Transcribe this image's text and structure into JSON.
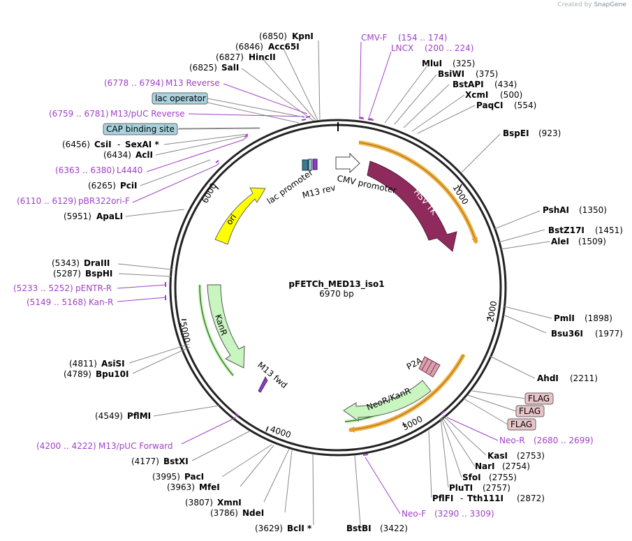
{
  "credit": {
    "prefix": "Created by",
    "brand": "SnapGene"
  },
  "plasmid": {
    "name": "pFETCh_MED13_iso1",
    "length": "6970 bp",
    "total_bp": 6970
  },
  "ticks": [
    {
      "label": "1000",
      "bp": 1000
    },
    {
      "label": "2000",
      "bp": 2000
    },
    {
      "label": "3000",
      "bp": 3000
    },
    {
      "label": "4000",
      "bp": 4000
    },
    {
      "label": "5000",
      "bp": 5000
    },
    {
      "label": "6000",
      "bp": 6000
    }
  ],
  "enzymes": {
    "kpni": {
      "name": "KpnI",
      "pos": "(6850)"
    },
    "acc65i": {
      "name": "Acc65I",
      "pos": "(6846)"
    },
    "hincii": {
      "name": "HincII",
      "pos": "(6827)"
    },
    "sali": {
      "name": "SalI",
      "pos": "(6825)"
    },
    "mlui": {
      "name": "MluI",
      "pos": "(325)"
    },
    "bsiwi": {
      "name": "BsiWI",
      "pos": "(375)"
    },
    "bstapi": {
      "name": "BstAPI",
      "pos": "(434)"
    },
    "xcmi": {
      "name": "XcmI",
      "pos": "(500)"
    },
    "paqci": {
      "name": "PaqCI",
      "pos": "(554)"
    },
    "bspei": {
      "name": "BspEI",
      "pos": "(923)"
    },
    "pshai": {
      "name": "PshAI",
      "pos": "(1350)"
    },
    "bstz17i": {
      "name": "BstZ17I",
      "pos": "(1451)"
    },
    "alei": {
      "name": "AleI",
      "pos": "(1509)"
    },
    "pmli": {
      "name": "PmlI",
      "pos": "(1898)"
    },
    "bsu36i": {
      "name": "Bsu36I",
      "pos": "(1977)"
    },
    "ahdi": {
      "name": "AhdI",
      "pos": "(2211)"
    },
    "kasi": {
      "name": "KasI",
      "pos": "(2753)"
    },
    "nari": {
      "name": "NarI",
      "pos": "(2754)"
    },
    "sfoi": {
      "name": "SfoI",
      "pos": "(2755)"
    },
    "pluti": {
      "name": "PluTI",
      "pos": "(2757)"
    },
    "pflfi": {
      "name": "PflFI",
      "dash": "-",
      "tth": "Tth111I",
      "pos": "(2872)"
    },
    "bstbi": {
      "name": "BstBI",
      "pos": "(3422)"
    },
    "bcli": {
      "name": "BclI *",
      "pos": "(3629)"
    },
    "ndei": {
      "name": "NdeI",
      "pos": "(3786)"
    },
    "xmni": {
      "name": "XmnI",
      "pos": "(3807)"
    },
    "mfei": {
      "name": "MfeI",
      "pos": "(3963)"
    },
    "paci": {
      "name": "PacI",
      "pos": "(3995)"
    },
    "bstxi": {
      "name": "BstXI",
      "pos": "(4177)"
    },
    "pflmi": {
      "name": "PflMI",
      "pos": "(4549)"
    },
    "bpu10i": {
      "name": "Bpu10I",
      "pos": "(4789)"
    },
    "asisi": {
      "name": "AsiSI",
      "pos": "(4811)"
    },
    "bsphi": {
      "name": "BspHI",
      "pos": "(5287)"
    },
    "draiii": {
      "name": "DraIII",
      "pos": "(5343)"
    },
    "apali": {
      "name": "ApaLI",
      "pos": "(5951)"
    },
    "pcii": {
      "name": "PciI",
      "pos": "(6265)"
    },
    "acli": {
      "name": "AclI",
      "pos": "(6434)"
    },
    "csii": {
      "name": "CsiI",
      "dash": "-",
      "sexai": "SexAI *",
      "pos": "(6456)"
    }
  },
  "primers": {
    "cmvf": {
      "name": "CMV-F",
      "range": "(154 .. 174)"
    },
    "lncx": {
      "name": "LNCX",
      "range": "(200 .. 224)"
    },
    "m13rev_long": {
      "name": "M13 Reverse",
      "range": "(6778 .. 6794)"
    },
    "m13puc_rev": {
      "name": "M13/pUC Reverse",
      "range": "(6759 .. 6781)"
    },
    "l4440": {
      "name": "L4440",
      "range": "(6363 .. 6380)"
    },
    "pbr322": {
      "name": "pBR322ori-F",
      "range": "(6110 .. 6129)"
    },
    "pentr": {
      "name": "pENTR-R",
      "range": "(5233 .. 5252)"
    },
    "kanr_p": {
      "name": "Kan-R",
      "range": "(5149 .. 5168)"
    },
    "m13puc_fwd": {
      "name": "M13/pUC Forward",
      "range": "(4200 .. 4222)"
    },
    "neor_p": {
      "name": "Neo-R",
      "range": "(2680 .. 2699)"
    },
    "neof_p": {
      "name": "Neo-F",
      "range": "(3290 .. 3309)"
    }
  },
  "boxes": {
    "lac_operator": "lac operator",
    "cap_site": "CAP binding site",
    "flag1": "FLAG",
    "flag2": "FLAG",
    "flag3": "FLAG"
  },
  "features": {
    "hsv_tk": "HSV TK",
    "cmv_promoter": "CMV promoter",
    "lac_promoter": "lac promoter",
    "m13_rev": "M13 rev",
    "ori": "ori",
    "kanr": "KanR",
    "m13_fwd": "M13 fwd",
    "neor_kanr": "NeoR/KanR",
    "p2a": "P2A"
  },
  "colors": {
    "backbone": "#222222",
    "hsv_tk": "#8e2a5c",
    "ori": "#ffff00",
    "kanr": "#c8f5c0",
    "primer": "#a040c8",
    "orf": "#f2b244",
    "box_blue": "#a9d3df",
    "box_pink": "#e8c4c8"
  }
}
